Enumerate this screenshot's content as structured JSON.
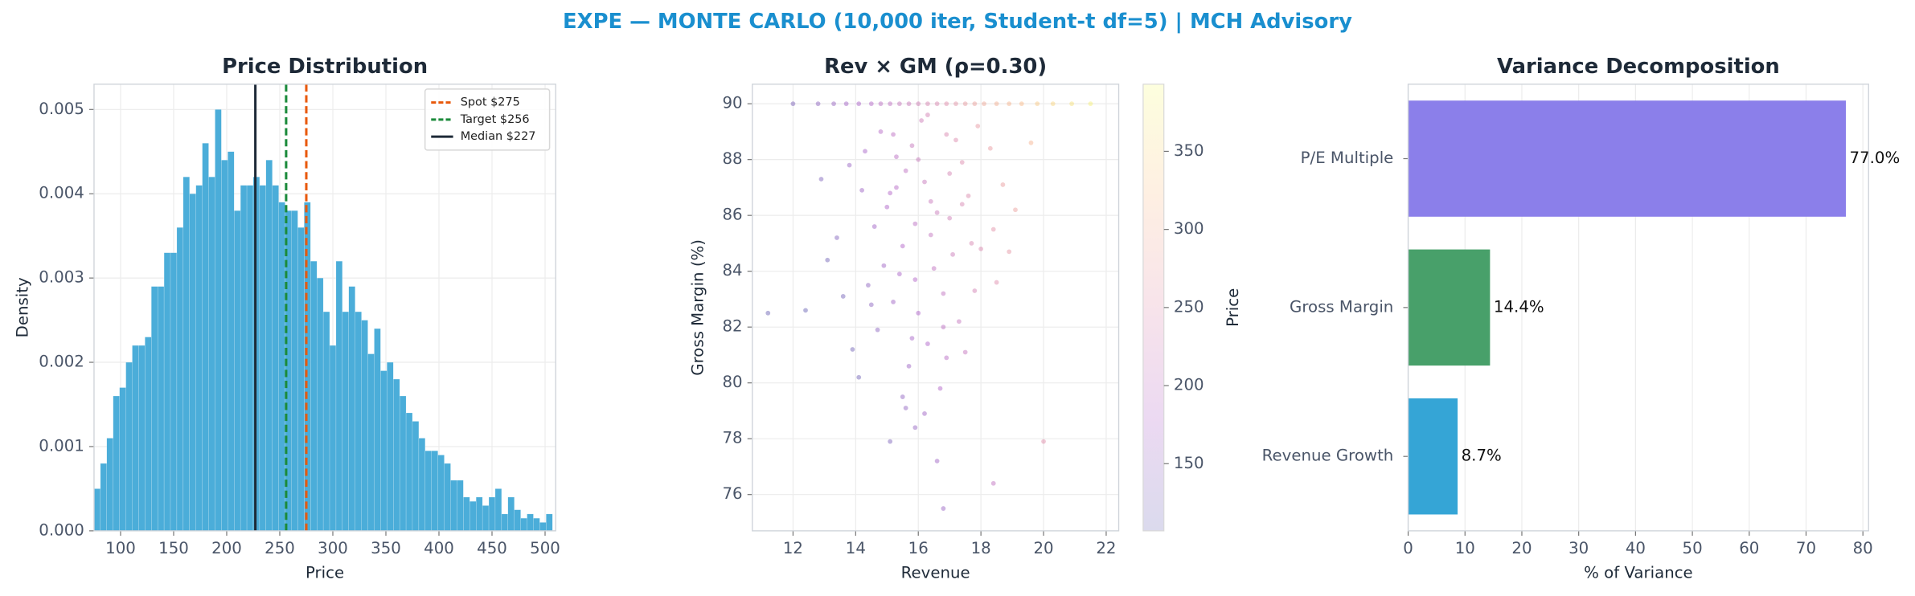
{
  "title": "EXPE — MONTE CARLO (10,000 iter, Student-t df=5) | MCH Advisory",
  "chart_data": [
    {
      "type": "histogram",
      "title": "Price Distribution",
      "x_label": "Price",
      "y_label": "Density",
      "bins": [
        75,
        81,
        87,
        93,
        99,
        105,
        111,
        117,
        123,
        129,
        135,
        141,
        147,
        153,
        159,
        165,
        171,
        177,
        183,
        189,
        195,
        201,
        207,
        213,
        219,
        225,
        231,
        237,
        243,
        249,
        255,
        261,
        267,
        273,
        279,
        285,
        291,
        297,
        303,
        309,
        315,
        321,
        327,
        333,
        339,
        345,
        351,
        357,
        363,
        369,
        375,
        381,
        387,
        393,
        399,
        405,
        411,
        417,
        423,
        429,
        435,
        441,
        447,
        453,
        459,
        465,
        471,
        477,
        483,
        489,
        495,
        501,
        507
      ],
      "values": [
        0.0005,
        0.0008,
        0.0011,
        0.0016,
        0.0017,
        0.002,
        0.0022,
        0.0022,
        0.0023,
        0.0029,
        0.0029,
        0.0033,
        0.0033,
        0.0036,
        0.0042,
        0.004,
        0.0041,
        0.0046,
        0.0042,
        0.005,
        0.0044,
        0.0045,
        0.0038,
        0.0041,
        0.0041,
        0.0042,
        0.0041,
        0.0044,
        0.0041,
        0.0039,
        0.0038,
        0.0038,
        0.0036,
        0.0039,
        0.0032,
        0.003,
        0.0026,
        0.0022,
        0.0032,
        0.0026,
        0.0029,
        0.0026,
        0.0025,
        0.0021,
        0.0024,
        0.0019,
        0.002,
        0.0018,
        0.0016,
        0.0014,
        0.0013,
        0.0011,
        0.00095,
        0.00095,
        0.0009,
        0.0008,
        0.0006,
        0.0006,
        0.0004,
        0.00035,
        0.0004,
        0.0003,
        0.0004,
        0.0005,
        0.0002,
        0.0004,
        0.00025,
        0.00015,
        0.0002,
        0.00015,
        0.0001,
        0.0002
      ],
      "color": "#4badd9",
      "xlim": [
        75,
        510
      ],
      "xticks": [
        100,
        150,
        200,
        250,
        300,
        350,
        400,
        450,
        500
      ],
      "ylim": [
        0,
        0.0053
      ],
      "yticks": [
        {
          "value": 0,
          "label": "0.000"
        },
        {
          "value": 0.001,
          "label": "0.001"
        },
        {
          "value": 0.002,
          "label": "0.002"
        },
        {
          "value": 0.003,
          "label": "0.003"
        },
        {
          "value": 0.004,
          "label": "0.004"
        },
        {
          "value": 0.005,
          "label": "0.005"
        }
      ],
      "vlines": [
        {
          "name": "Spot $275",
          "value": 275,
          "color": "#e8590c",
          "dashed": true
        },
        {
          "name": "Target $256",
          "value": 256,
          "color": "#1a8a3a",
          "dashed": true
        },
        {
          "name": "Median $227",
          "value": 227,
          "color": "#1e2a38",
          "dashed": false
        }
      ],
      "legend": "upper right",
      "grid": true
    },
    {
      "type": "scatter",
      "title": "Rev × GM (ρ=0.30)",
      "x_label": "Revenue",
      "y_label": "Gross Margin (%)",
      "x": [
        12.0,
        12.8,
        13.3,
        13.7,
        14.1,
        14.5,
        14.8,
        15.1,
        15.4,
        15.7,
        16.0,
        16.3,
        16.6,
        16.9,
        17.2,
        17.5,
        17.8,
        18.1,
        18.5,
        18.9,
        19.3,
        19.8,
        20.3,
        20.9,
        21.5,
        15.8,
        16.2,
        15.1,
        16.9,
        17.4,
        14.6,
        15.5,
        16.6,
        17.9,
        15.9,
        16.4,
        14.2,
        15.3,
        17.1,
        18.3,
        16.0,
        15.6,
        16.8,
        14.9,
        17.6,
        13.8,
        16.3,
        15.2,
        17.0,
        18.7,
        15.7,
        16.5,
        14.4,
        16.1,
        17.3,
        13.4,
        15.0,
        16.7,
        18.0,
        14.7,
        15.9,
        17.5,
        12.9,
        16.2,
        15.4,
        17.8,
        14.1,
        16.9,
        15.6,
        18.4,
        13.1,
        16.4,
        15.1,
        17.2,
        14.5,
        16.0,
        19.1,
        12.4,
        15.8,
        17.0,
        14.8,
        16.6,
        13.6,
        18.9,
        15.3,
        16.3,
        17.7,
        14.3,
        16.8,
        15.5,
        11.2,
        19.6,
        15.9,
        16.8,
        17.4,
        13.9,
        18.4,
        20.0,
        15.2,
        18.5
      ],
      "y": [
        90,
        90,
        90,
        90,
        90,
        90,
        90,
        90,
        90,
        90,
        90,
        90,
        90,
        90,
        90,
        90,
        90,
        90,
        90,
        90,
        90,
        90,
        90,
        90,
        90,
        88.5,
        87.2,
        86.8,
        88.9,
        87.9,
        85.6,
        84.9,
        86.1,
        89.2,
        83.7,
        85.3,
        86.9,
        88.1,
        84.6,
        88.4,
        82.5,
        87.6,
        83.2,
        84.2,
        86.7,
        87.8,
        81.4,
        82.9,
        85.9,
        87.1,
        80.6,
        84.1,
        83.5,
        89.4,
        82.2,
        85.2,
        86.3,
        79.8,
        84.8,
        81.9,
        85.7,
        81.1,
        87.3,
        78.9,
        83.9,
        83.3,
        80.2,
        80.9,
        79.1,
        85.5,
        84.4,
        86.5,
        77.9,
        88.7,
        82.8,
        88.0,
        86.2,
        82.6,
        81.6,
        87.5,
        89.0,
        77.2,
        83.1,
        84.7,
        87.0,
        89.6,
        85.0,
        88.3,
        82.0,
        79.5,
        82.5,
        88.6,
        78.4,
        75.5,
        86.4,
        81.2,
        76.4,
        77.9,
        88.9,
        83.6
      ],
      "c": [
        130,
        145,
        155,
        165,
        175,
        185,
        195,
        200,
        210,
        215,
        225,
        235,
        240,
        250,
        260,
        270,
        280,
        290,
        300,
        310,
        320,
        335,
        350,
        365,
        380,
        210,
        212,
        183,
        240,
        246,
        163,
        180,
        216,
        266,
        183,
        206,
        160,
        195,
        219,
        271,
        179,
        200,
        203,
        161,
        244,
        156,
        179,
        161,
        224,
        274,
        160,
        201,
        145,
        222,
        209,
        135,
        177,
        180,
        243,
        142,
        195,
        208,
        130,
        162,
        172,
        229,
        117,
        191,
        149,
        257,
        117,
        213,
        128,
        246,
        143,
        212,
        278,
        110,
        169,
        234,
        188,
        162,
        123,
        264,
        188,
        229,
        236,
        171,
        196,
        148,
        112,
        306,
        151,
        157,
        237,
        118,
        202,
        251,
        197,
        248
      ],
      "colormap": "plasma",
      "xlim": [
        10.7,
        22.4
      ],
      "xticks": [
        12,
        14,
        16,
        18,
        20,
        22
      ],
      "ylim": [
        74.7,
        90.7
      ],
      "yticks": [
        76,
        78,
        80,
        82,
        84,
        86,
        88,
        90
      ],
      "colorbar": {
        "label": "Price",
        "lim": [
          107,
          393
        ],
        "ticks": [
          150,
          200,
          250,
          300,
          350
        ]
      },
      "grid": true
    },
    {
      "type": "barh",
      "title": "Variance Decomposition",
      "x_label": "% of Variance",
      "categories": [
        "P/E Multiple",
        "Gross Margin",
        "Revenue Growth"
      ],
      "values": [
        77.0,
        14.4,
        8.7
      ],
      "value_labels": [
        "77.0%",
        "14.4%",
        "8.7%"
      ],
      "colors": [
        "#8b7fea",
        "#48a06a",
        "#35a5d6"
      ],
      "xlim": [
        0,
        81
      ],
      "xticks": [
        0,
        10,
        20,
        30,
        40,
        50,
        60,
        70,
        80
      ],
      "grid": true
    }
  ]
}
